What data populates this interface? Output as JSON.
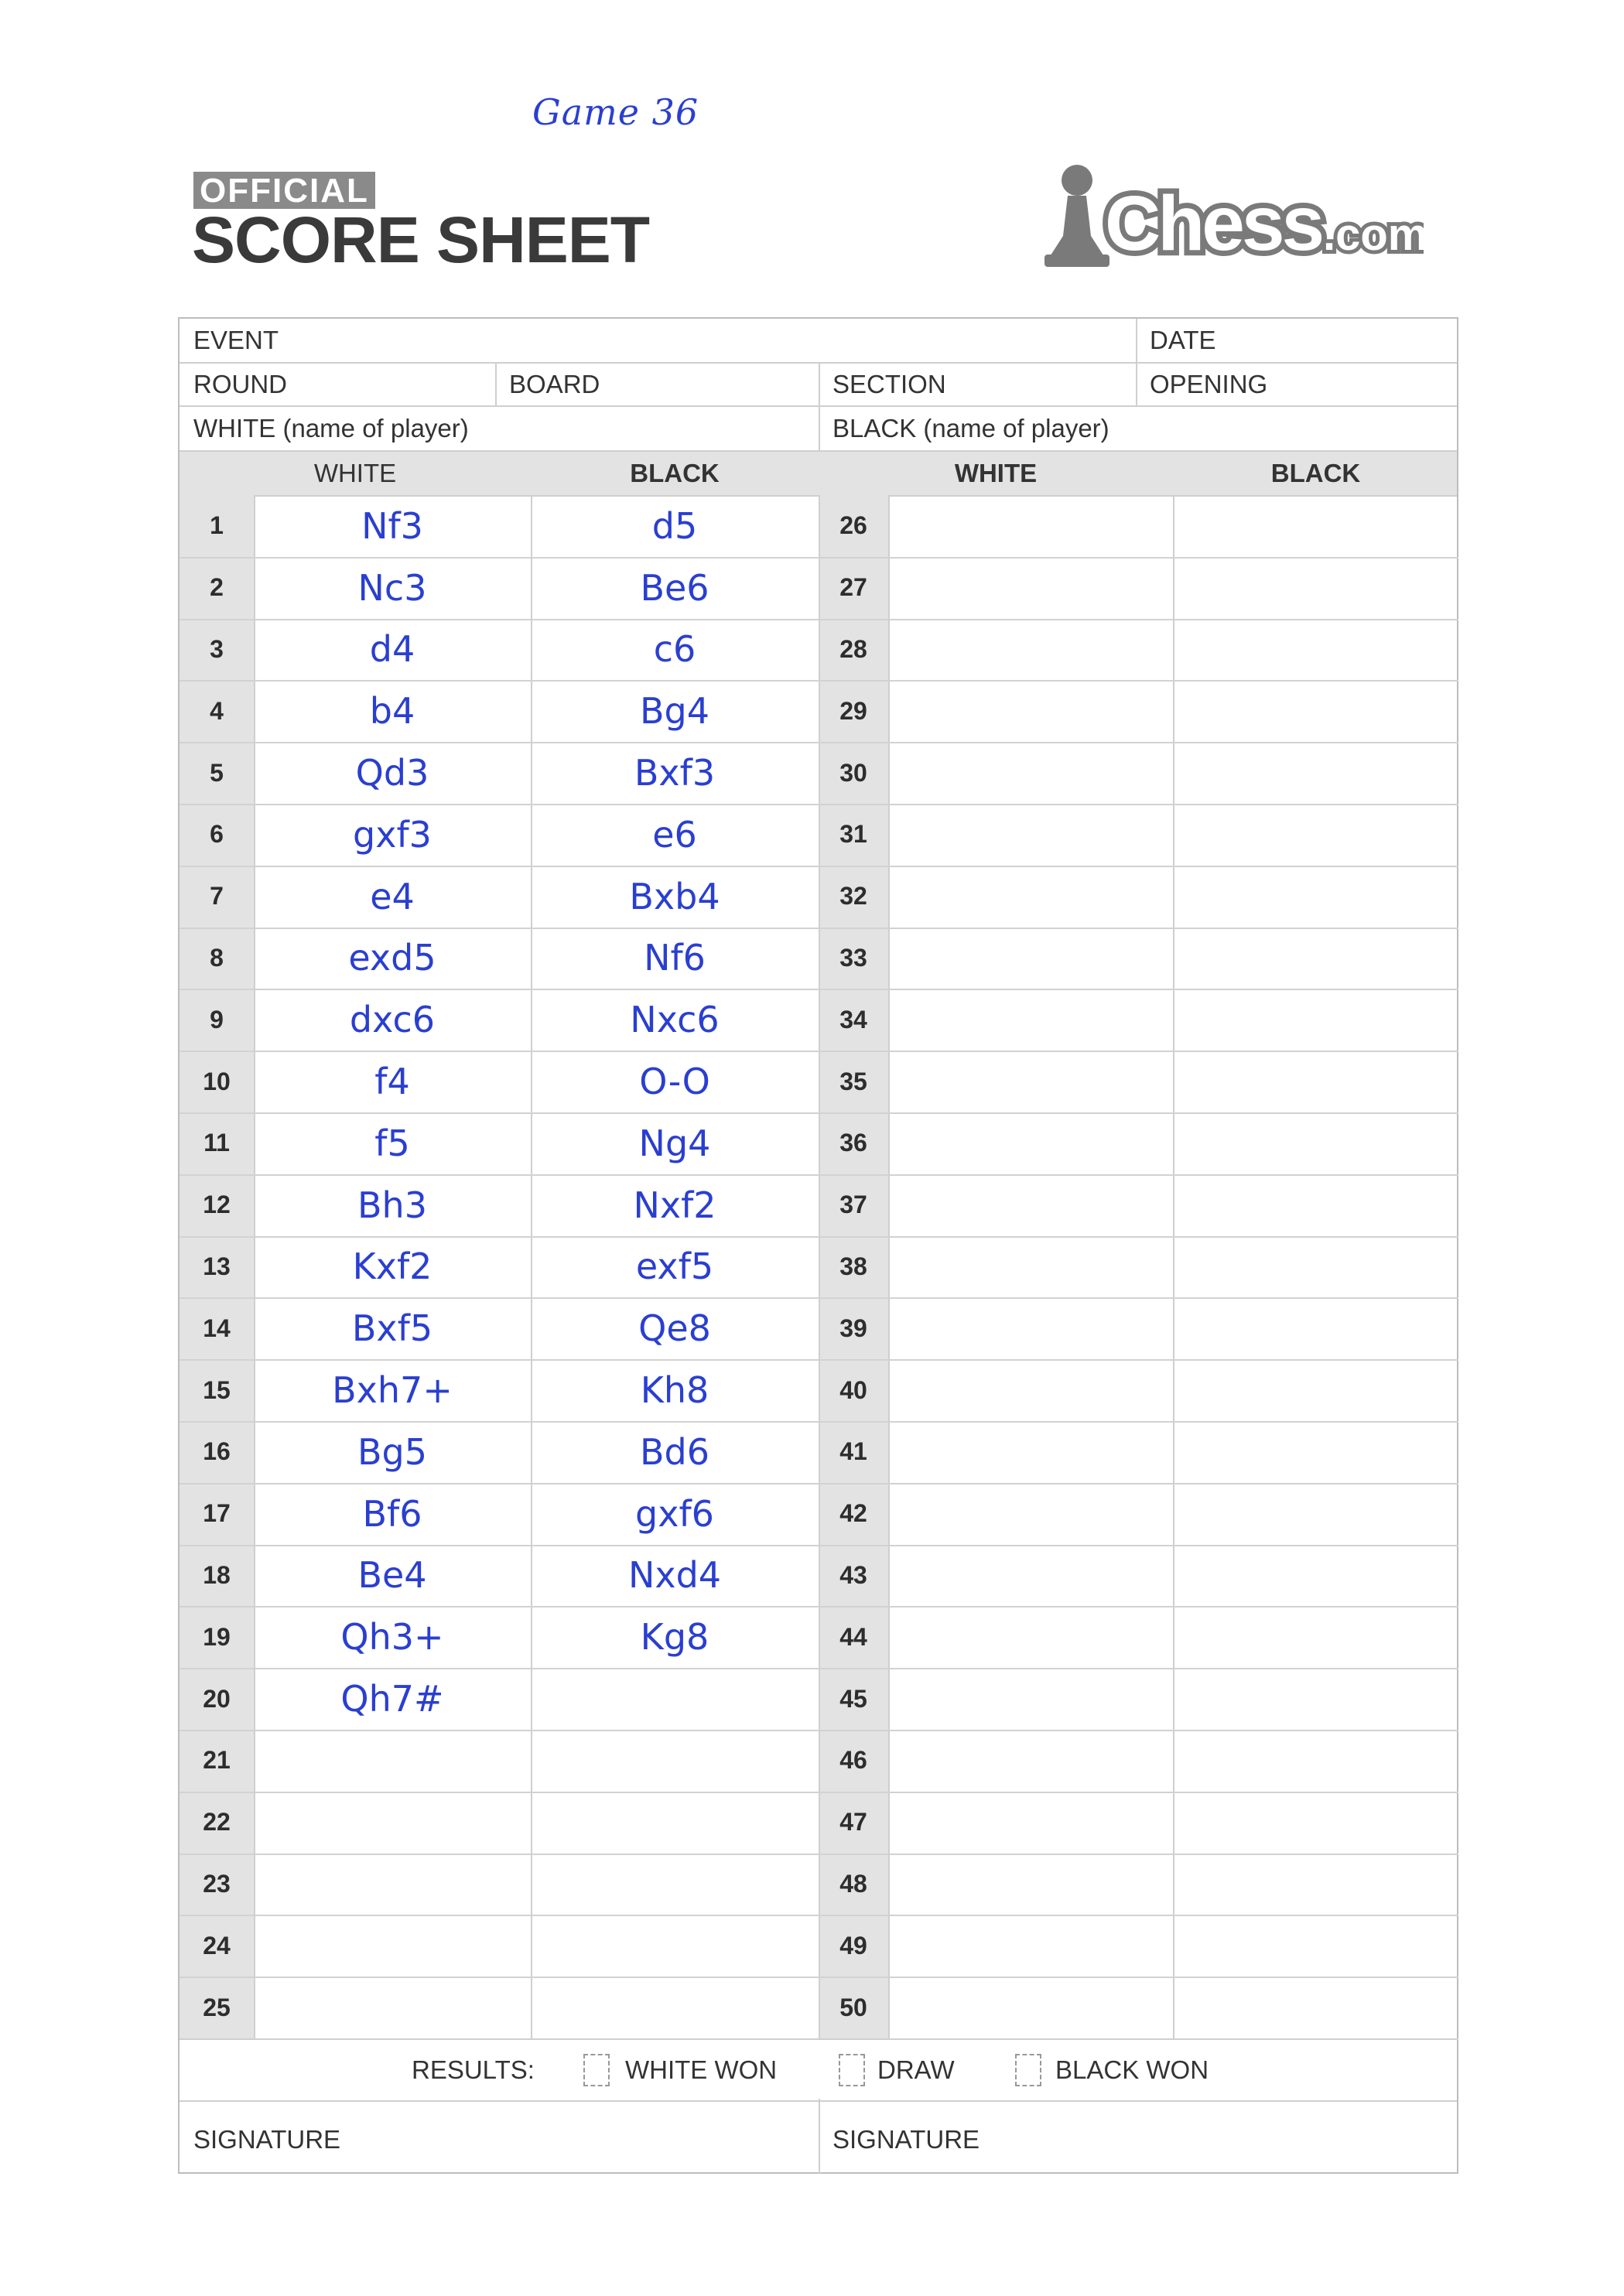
{
  "handwritten_note": "Game 36",
  "header": {
    "badge": "OFFICIAL",
    "title": "SCORE SHEET",
    "logo_text": "Chess.com"
  },
  "fields": {
    "event": "EVENT",
    "date": "DATE",
    "round": "ROUND",
    "board": "BOARD",
    "section": "SECTION",
    "opening": "OPENING",
    "white_player": "WHITE (name of player)",
    "black_player": "BLACK (name of player)"
  },
  "columns": {
    "white": "WHITE",
    "black": "BLACK"
  },
  "moves": [
    {
      "n": "1",
      "w": "Nf3",
      "b": "d5"
    },
    {
      "n": "2",
      "w": "Nc3",
      "b": "Be6"
    },
    {
      "n": "3",
      "w": "d4",
      "b": "c6"
    },
    {
      "n": "4",
      "w": "b4",
      "b": "Bg4"
    },
    {
      "n": "5",
      "w": "Qd3",
      "b": "Bxf3"
    },
    {
      "n": "6",
      "w": "gxf3",
      "b": "e6"
    },
    {
      "n": "7",
      "w": "e4",
      "b": "Bxb4"
    },
    {
      "n": "8",
      "w": "exd5",
      "b": "Nf6"
    },
    {
      "n": "9",
      "w": "dxc6",
      "b": "Nxc6"
    },
    {
      "n": "10",
      "w": "f4",
      "b": "O-O"
    },
    {
      "n": "11",
      "w": "f5",
      "b": "Ng4"
    },
    {
      "n": "12",
      "w": "Bh3",
      "b": "Nxf2"
    },
    {
      "n": "13",
      "w": "Kxf2",
      "b": "exf5"
    },
    {
      "n": "14",
      "w": "Bxf5",
      "b": "Qe8"
    },
    {
      "n": "15",
      "w": "Bxh7+",
      "b": "Kh8"
    },
    {
      "n": "16",
      "w": "Bg5",
      "b": "Bd6"
    },
    {
      "n": "17",
      "w": "Bf6",
      "b": "gxf6"
    },
    {
      "n": "18",
      "w": "Be4",
      "b": "Nxd4"
    },
    {
      "n": "19",
      "w": "Qh3+",
      "b": "Kg8"
    },
    {
      "n": "20",
      "w": "Qh7#",
      "b": ""
    },
    {
      "n": "21",
      "w": "",
      "b": ""
    },
    {
      "n": "22",
      "w": "",
      "b": ""
    },
    {
      "n": "23",
      "w": "",
      "b": ""
    },
    {
      "n": "24",
      "w": "",
      "b": ""
    },
    {
      "n": "25",
      "w": "",
      "b": ""
    }
  ],
  "moves_right": [
    "26",
    "27",
    "28",
    "29",
    "30",
    "31",
    "32",
    "33",
    "34",
    "35",
    "36",
    "37",
    "38",
    "39",
    "40",
    "41",
    "42",
    "43",
    "44",
    "45",
    "46",
    "47",
    "48",
    "49",
    "50"
  ],
  "results": {
    "label": "RESULTS:",
    "white_won": "WHITE WON",
    "draw": "DRAW",
    "black_won": "BLACK WON"
  },
  "signature_left": "SIGNATURE",
  "signature_right": "SIGNATURE",
  "colors": {
    "ink": "#2a3fd0",
    "header_gray": "#e3e3e3",
    "line": "#cfcfcf"
  }
}
